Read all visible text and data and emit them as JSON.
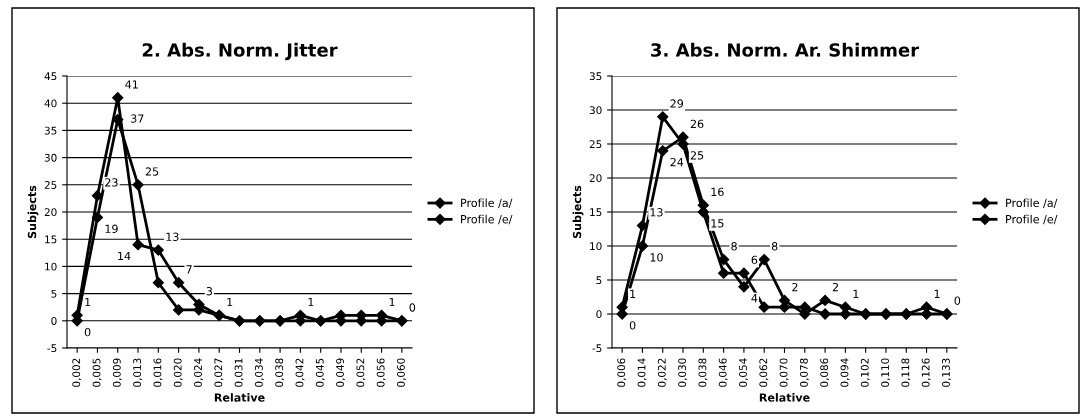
{
  "chart_data": [
    {
      "type": "line",
      "title": "2. Abs. Norm. Jitter",
      "xlabel": "Relative",
      "ylabel": "Subjects",
      "categories": [
        "0,002",
        "0,005",
        "0,009",
        "0,013",
        "0,016",
        "0,020",
        "0,024",
        "0,027",
        "0,031",
        "0,034",
        "0,038",
        "0,042",
        "0,045",
        "0,049",
        "0,052",
        "0,056",
        "0,060"
      ],
      "series": [
        {
          "name": "Profile /a/",
          "color": "#000000",
          "values": [
            1,
            23,
            41,
            14,
            13,
            7,
            3,
            1,
            0,
            0,
            0,
            1,
            0,
            1,
            1,
            1,
            0
          ],
          "value_labels": [
            "1",
            "23",
            "41",
            "14",
            "13",
            "7",
            "3",
            "1",
            null,
            null,
            null,
            "1",
            null,
            null,
            null,
            "1",
            "0"
          ]
        },
        {
          "name": "Profile /e/",
          "color": "#000000",
          "values": [
            0,
            19,
            37,
            25,
            7,
            2,
            2,
            1,
            0,
            0,
            0,
            0,
            0,
            0,
            0,
            0,
            0
          ],
          "value_labels": [
            "0",
            "19",
            "37",
            "25",
            null,
            null,
            null,
            null,
            null,
            null,
            null,
            null,
            null,
            null,
            null,
            null,
            null
          ]
        }
      ],
      "ylim": [
        -5,
        45
      ],
      "yticks": [
        -5,
        0,
        5,
        10,
        15,
        20,
        25,
        30,
        35,
        40,
        45
      ],
      "grid": "y",
      "legend": "right",
      "marker": "diamond",
      "line_style": "solid"
    },
    {
      "type": "line",
      "title": "3. Abs. Norm. Ar. Shimmer",
      "xlabel": "Relative",
      "ylabel": "Subjects",
      "categories": [
        "0,006",
        "0,014",
        "0,022",
        "0,030",
        "0,038",
        "0,046",
        "0,054",
        "0,062",
        "0,070",
        "0,078",
        "0,086",
        "0,094",
        "0,102",
        "0,110",
        "0,118",
        "0,126",
        "0,133"
      ],
      "series": [
        {
          "name": "Profile /a/",
          "color": "#000000",
          "values": [
            1,
            13,
            29,
            25,
            15,
            6,
            6,
            1,
            1,
            1,
            0,
            0,
            0,
            0,
            0,
            1,
            0
          ],
          "value_labels": [
            "1",
            "13",
            "29",
            "25",
            "15",
            null,
            "6",
            null,
            null,
            null,
            null,
            null,
            null,
            null,
            null,
            "1",
            "0"
          ]
        },
        {
          "name": "Profile /e/",
          "color": "#000000",
          "values": [
            0,
            10,
            24,
            26,
            16,
            8,
            4,
            8,
            2,
            0,
            2,
            1,
            0,
            0,
            0,
            0,
            0
          ],
          "value_labels": [
            "0",
            "10",
            "24",
            "26",
            "16",
            "8",
            "4",
            "8",
            "2",
            null,
            "2",
            "1",
            null,
            null,
            null,
            null,
            null
          ]
        }
      ],
      "ylim": [
        -5,
        35
      ],
      "yticks": [
        -5,
        0,
        5,
        10,
        15,
        20,
        25,
        30,
        35
      ],
      "grid": "y",
      "legend": "right",
      "marker": "diamond",
      "line_style": "solid"
    }
  ]
}
